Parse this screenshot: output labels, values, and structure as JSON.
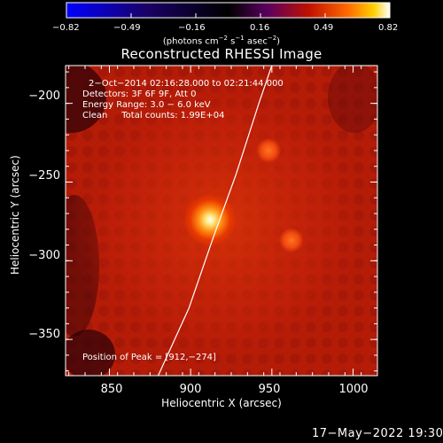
{
  "colorbar": {
    "ticks": [
      "−0.82",
      "−0.49",
      "−0.16",
      "0.16",
      "0.49",
      "0.82"
    ],
    "unit_html": "(photons cm<sup>−2</sup> s<sup>−1</sup> asec<sup>−2</sup>)"
  },
  "title": "Reconstructed RHESSI Image",
  "info": {
    "line1": "2−Oct−2014 02:16:28.000 to 02:21:44.000",
    "line2": "Detectors: 3F 6F 9F, Att 0",
    "line3": "Energy Range: 3.0 − 6.0 keV",
    "line4": "Clean     Total counts: 1.99E+04",
    "peak": "Position of Peak = [912,−274]"
  },
  "axes": {
    "x_label": "Heliocentric X (arcsec)",
    "y_label": "Heliocentric Y (arcsec)",
    "x_ticks": [
      "850",
      "900",
      "950",
      "1000"
    ],
    "y_ticks": [
      "−200",
      "−250",
      "−300",
      "−350"
    ],
    "x_range": [
      823,
      1015
    ],
    "y_range": [
      -176,
      -373
    ]
  },
  "plot": {
    "x_tick_values": [
      850,
      900,
      950,
      1000
    ],
    "y_tick_values": [
      -200,
      -250,
      -300,
      -350
    ],
    "peak": [
      912,
      -274
    ],
    "secondary_sources": [
      [
        948,
        -230
      ],
      [
        962,
        -287
      ]
    ],
    "limb": [
      [
        880,
        -373
      ],
      [
        899,
        -330
      ],
      [
        914,
        -285
      ],
      [
        928,
        -245
      ],
      [
        942,
        -200
      ],
      [
        950,
        -176
      ]
    ]
  },
  "colors": {
    "background": "#000000",
    "text": "#ffffff",
    "colormap": [
      "#0000ff",
      "#1a0066",
      "#000000",
      "#5a0060",
      "#c01000",
      "#ff6a00",
      "#ffd000",
      "#ffffff"
    ]
  },
  "footer": {
    "date": "17−May−2022 19:30"
  }
}
